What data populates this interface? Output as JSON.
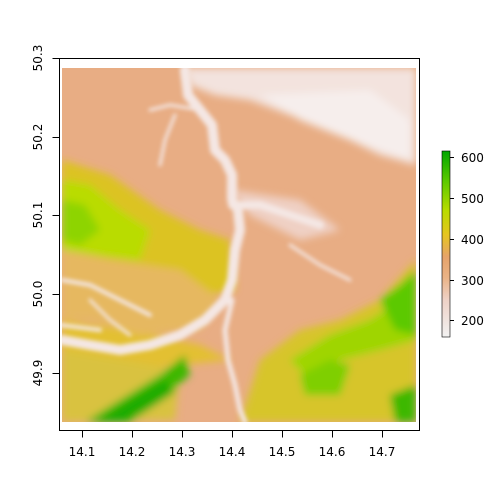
{
  "map": {
    "type": "raster-elevation",
    "x_ticks": [
      "14.1",
      "14.2",
      "14.3",
      "14.4",
      "14.5",
      "14.6",
      "14.7"
    ],
    "y_ticks": [
      "49.9",
      "50.0",
      "50.1",
      "50.2",
      "50.3"
    ],
    "x_range": [
      14.06,
      14.77
    ],
    "y_range": [
      49.835,
      50.29
    ],
    "axis_x_limits": [
      14.06,
      14.77
    ],
    "axis_y_limits": [
      49.83,
      50.3
    ]
  },
  "legend": {
    "ticks": [
      "200",
      "300",
      "400",
      "500",
      "600"
    ],
    "range": [
      155,
      615
    ],
    "colors": [
      "#F2F2F2",
      "#EED1C6",
      "#EAB386",
      "#E6A36A",
      "#E6C520",
      "#B9DC00",
      "#5BC900",
      "#00A600"
    ]
  }
}
